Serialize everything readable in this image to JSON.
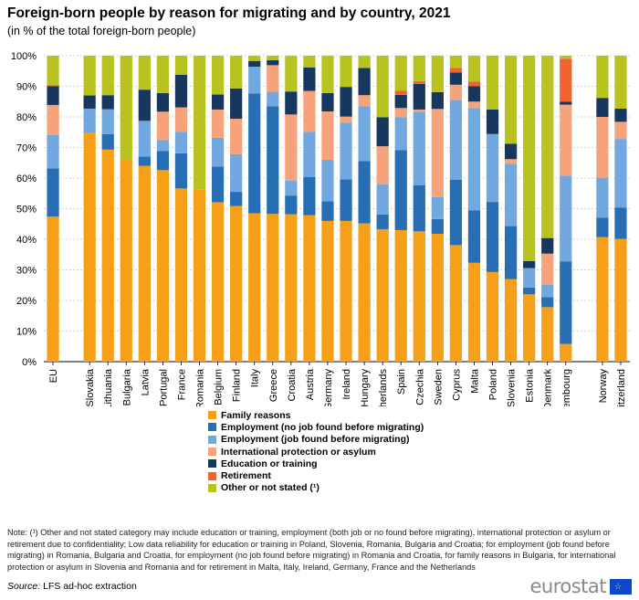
{
  "title": "Foreign-born people by reason for migrating and by country, 2021",
  "subtitle": "(in % of the total foreign-born people)",
  "chart_data": {
    "type": "bar",
    "stacked": true,
    "ylim": [
      0,
      100
    ],
    "yticks": [
      "0%",
      "10%",
      "20%",
      "30%",
      "40%",
      "50%",
      "60%",
      "70%",
      "80%",
      "90%",
      "100%"
    ],
    "categories": [
      "EU",
      "",
      "Slovakia",
      "Lithuania",
      "Bulgaria",
      "Latvia",
      "Portugal",
      "France",
      "Romania",
      "Belgium",
      "Finland",
      "Italy",
      "Greece",
      "Croatia",
      "Austria",
      "Germany",
      "Ireland",
      "Hungary",
      "Netherlands",
      "Spain",
      "Czechia",
      "Sweden",
      "Cyprus",
      "Malta",
      "Poland",
      "Slovenia",
      "Estonia",
      "Denmark",
      "Luxembourg",
      "",
      "Norway",
      "Switzerland"
    ],
    "series": [
      {
        "name": "Family reasons",
        "color": "#f6a01a",
        "values": [
          47.4,
          0,
          74.7,
          69.3,
          66.1,
          64.0,
          62.6,
          56.6,
          56.2,
          52.1,
          50.9,
          48.5,
          48.3,
          48.2,
          47.9,
          46.0,
          46.0,
          45.2,
          43.3,
          43.0,
          42.6,
          41.8,
          38.1,
          32.3,
          29.3,
          27.0,
          22.0,
          17.8,
          5.8,
          0,
          40.7,
          40.1
        ]
      },
      {
        "name": "Employment (no job found before migrating)",
        "color": "#286eb4",
        "values": [
          15.8,
          0,
          0,
          5.1,
          0,
          3.0,
          6.3,
          11.5,
          0,
          11.7,
          4.6,
          39.2,
          35.2,
          6.1,
          12.5,
          6.4,
          13.6,
          20.4,
          4.8,
          26.1,
          15.1,
          4.8,
          21.3,
          17.1,
          22.9,
          17.3,
          2.2,
          3.3,
          27.0,
          0,
          6.4,
          10.3
        ]
      },
      {
        "name": "Employment (job found before migrating)",
        "color": "#71a8df",
        "values": [
          10.9,
          0,
          8.0,
          8.1,
          0,
          11.7,
          3.5,
          7.0,
          0,
          9.4,
          12.3,
          8.7,
          4.7,
          4.9,
          14.7,
          13.6,
          18.5,
          17.9,
          9.8,
          10.8,
          24.0,
          7.2,
          26.1,
          33.5,
          22.2,
          20.4,
          6.4,
          4.0,
          28.0,
          0,
          13.0,
          22.4
        ]
      },
      {
        "name": "International protection or asylum",
        "color": "#f6a27a",
        "values": [
          9.8,
          0,
          0,
          0,
          0,
          0,
          9.3,
          8.0,
          0,
          9.2,
          11.6,
          0,
          8.7,
          21.6,
          13.4,
          15.8,
          2.0,
          3.6,
          12.5,
          3.0,
          0.7,
          28.8,
          5.0,
          2.1,
          0,
          1.5,
          0,
          10.2,
          23.2,
          0,
          19.9,
          5.6
        ]
      },
      {
        "name": "Education or training",
        "color": "#17375e",
        "values": [
          6.1,
          0,
          4.3,
          4.6,
          0,
          10.2,
          6.1,
          10.7,
          0,
          4.9,
          9.9,
          1.9,
          1.6,
          7.5,
          7.7,
          6.0,
          9.7,
          8.9,
          9.5,
          4.3,
          8.4,
          5.5,
          4.0,
          5.0,
          8.0,
          5.0,
          2.3,
          5.1,
          1.0,
          0,
          6.2,
          4.3
        ]
      },
      {
        "name": "Retirement",
        "color": "#f0622e",
        "values": [
          0.4,
          0,
          0,
          0,
          0,
          0,
          0,
          0,
          0,
          0,
          0,
          0,
          0,
          0,
          0,
          0,
          0,
          0,
          0,
          1.4,
          0.9,
          0,
          1.5,
          1.5,
          0,
          0,
          0,
          0,
          14.0,
          0,
          0,
          0
        ]
      },
      {
        "name": "Other or not stated (¹)",
        "color": "#b9c31f",
        "values": [
          9.6,
          0,
          13.0,
          12.9,
          33.9,
          11.1,
          12.2,
          6.2,
          43.8,
          12.7,
          10.7,
          1.7,
          1.5,
          11.7,
          3.8,
          12.2,
          10.2,
          4.0,
          20.1,
          11.4,
          8.3,
          11.9,
          4.0,
          8.5,
          17.6,
          28.8,
          67.1,
          59.6,
          1.0,
          0,
          13.8,
          17.3
        ]
      }
    ]
  },
  "note": "Note: (¹) Other and not stated category may include education or training, employment (both job or no found before migrating), international protection or asylum or retirement due to confidentiality; Low data reliability for education or training in Poland, Slovenia, Romania, Bulgaria and Croatia; for employment (job found before migrating) in Romania, Bulgaria and Croatia, for employment (no job found before migrating) in Romania and Croatia, for family reasons in Bulgaria, for international protection or asylum in Slovenia and Romania and for retirement in Malta, Italy, Ireland, Germany, France and the Netherlands",
  "source": {
    "label": "Source:",
    "text": " LFS ad-hoc extraction"
  },
  "logo": {
    "text": "eurostat",
    "flag_stars": "☆"
  }
}
